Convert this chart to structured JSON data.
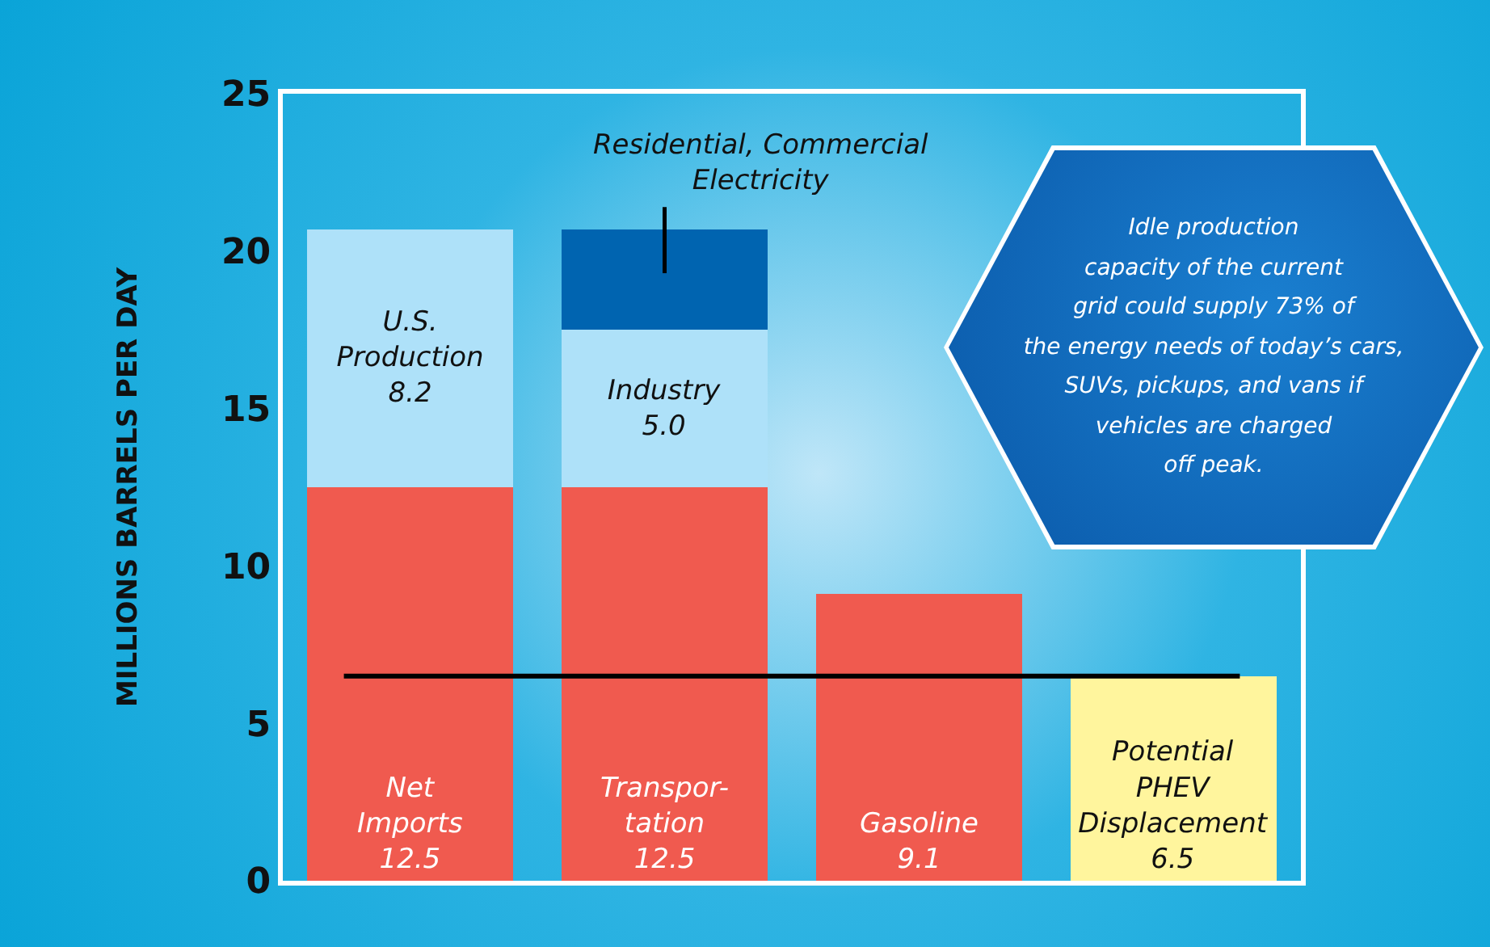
{
  "chart_data": {
    "type": "bar",
    "stacked": true,
    "ylabel": "MILLIONS BARRELS PER DAY",
    "categories": [
      null,
      null,
      null,
      null
    ],
    "series": [
      {
        "colors": [
          "#f05a4f",
          "#f05a4f",
          "#f05a4f",
          "#fff59d"
        ],
        "values": [
          12.5,
          12.5,
          9.1,
          6.5
        ],
        "value_labels": [
          "Net\nImports\n12.5",
          "Transpor-\ntation\n12.5",
          "Gasoline\n9.1",
          "Potential\nPHEV\nDisplacement\n6.5"
        ]
      },
      {
        "color": "#aee1f9",
        "values": [
          8.2,
          5.0,
          null,
          null
        ],
        "value_labels": [
          "U.S.\nProduction\n8.2",
          "Industry\n5.0",
          null,
          null
        ]
      },
      {
        "color": "#0064b0",
        "values": [
          null,
          3.2,
          null,
          null
        ]
      }
    ],
    "ylim": [
      0,
      25
    ],
    "yticks": [
      0,
      5,
      10,
      15,
      20,
      25
    ],
    "grid": false,
    "ref_lines": [
      {
        "axis": "y",
        "value": 6.5,
        "color": "#000000"
      }
    ],
    "annotations": [
      "Residential, Commercial\nElectricity",
      "Idle production\ncapacity of the current\ngrid could supply 73% of\nthe energy needs of today’s cars,\nSUVs, pickups, and vans if\nvehicles are charged\noff peak."
    ]
  }
}
